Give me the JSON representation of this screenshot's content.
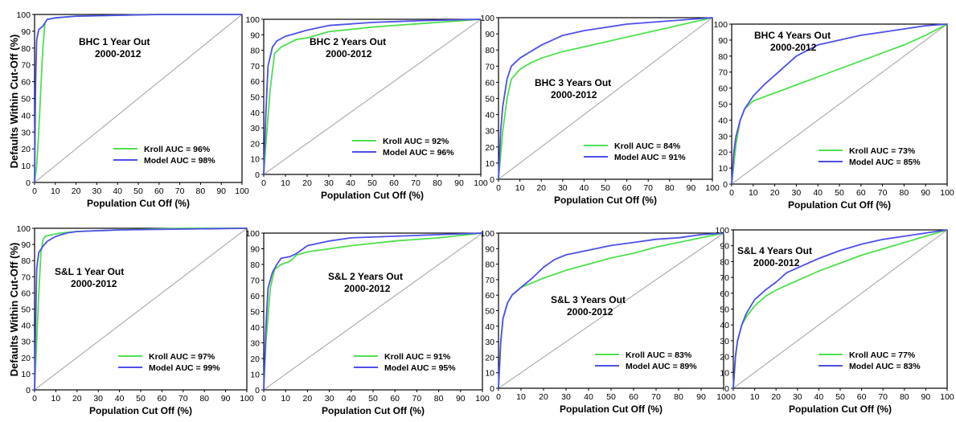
{
  "y_axis_label": "Defaults Within Cut-Off (%)",
  "x_axis_label": "Population Cut Off (%)",
  "tick_values": [
    0,
    10,
    20,
    30,
    40,
    50,
    60,
    70,
    80,
    90,
    100
  ],
  "colors": {
    "kroll": "#4ee04e",
    "model": "#4f4fe8",
    "diagonal": "#a0a0a0",
    "axis": "#000000"
  },
  "chart_data": [
    {
      "type": "line",
      "title_line1": "BHC 1 Year Out",
      "title_line2": "2000-2012",
      "xlabel": "Population Cut Off (%)",
      "ylabel": "Defaults Within Cut-Off (%)",
      "xlim": [
        0,
        100
      ],
      "ylim": [
        0,
        100
      ],
      "grid": false,
      "legend": "bottom-right",
      "series": [
        {
          "name": "Kroll AUC = 96%",
          "x": [
            0,
            1,
            2,
            3,
            4,
            5,
            6,
            10,
            20,
            40,
            60,
            100
          ],
          "y": [
            0,
            10,
            30,
            55,
            80,
            95,
            97,
            98,
            99,
            99.5,
            100,
            100
          ]
        },
        {
          "name": "Model AUC = 98%",
          "x": [
            0,
            0.5,
            1,
            2,
            4,
            6,
            10,
            20,
            60,
            100
          ],
          "y": [
            0,
            60,
            85,
            91,
            93,
            97,
            98,
            99,
            100,
            100
          ]
        }
      ]
    },
    {
      "type": "line",
      "title_line1": "BHC 2 Years Out",
      "title_line2": "2000-2012",
      "xlabel": "Population Cut Off (%)",
      "ylabel": "",
      "xlim": [
        0,
        100
      ],
      "ylim": [
        0,
        100
      ],
      "grid": false,
      "legend": "bottom-right",
      "series": [
        {
          "name": "Kroll AUC = 92%",
          "x": [
            0,
            1,
            3,
            5,
            8,
            15,
            20,
            30,
            50,
            70,
            100
          ],
          "y": [
            0,
            20,
            55,
            78,
            82,
            87,
            88,
            92,
            95,
            97,
            100
          ]
        },
        {
          "name": "Model AUC = 96%",
          "x": [
            0,
            1,
            2,
            4,
            6,
            10,
            15,
            20,
            30,
            50,
            70,
            100
          ],
          "y": [
            0,
            40,
            70,
            82,
            86,
            89,
            91,
            93,
            96,
            98,
            99,
            100
          ]
        }
      ]
    },
    {
      "type": "line",
      "title_line1": "BHC 3 Years Out",
      "title_line2": "2000-2012",
      "xlabel": "Population Cut Off (%)",
      "ylabel": "",
      "xlim": [
        0,
        100
      ],
      "ylim": [
        0,
        100
      ],
      "grid": false,
      "legend": "bottom-right",
      "series": [
        {
          "name": "Kroll AUC = 84%",
          "x": [
            0,
            2,
            4,
            6,
            10,
            15,
            20,
            30,
            40,
            50,
            60,
            70,
            80,
            90,
            100
          ],
          "y": [
            0,
            30,
            50,
            62,
            68,
            72,
            75,
            79,
            82,
            85,
            88,
            91,
            94,
            97,
            100
          ]
        },
        {
          "name": "Model AUC = 91%",
          "x": [
            0,
            1,
            2,
            4,
            6,
            10,
            15,
            20,
            30,
            40,
            50,
            60,
            70,
            80,
            90,
            100
          ],
          "y": [
            0,
            30,
            45,
            62,
            70,
            75,
            79,
            83,
            89,
            92,
            94,
            96,
            97,
            98,
            99,
            100
          ]
        }
      ]
    },
    {
      "type": "line",
      "title_line1": "BHC 4 Years Out",
      "title_line2": "2000-2012",
      "xlabel": "Population Cut Off (%)",
      "ylabel": "",
      "xlim": [
        0,
        100
      ],
      "ylim": [
        0,
        100
      ],
      "grid": false,
      "legend": "bottom-right",
      "series": [
        {
          "name": "Kroll AUC = 73%",
          "x": [
            0,
            2,
            4,
            6,
            10,
            20,
            30,
            40,
            50,
            60,
            70,
            80,
            90,
            100
          ],
          "y": [
            0,
            25,
            40,
            47,
            52,
            57,
            62,
            67,
            72,
            77,
            82,
            87,
            93,
            100
          ]
        },
        {
          "name": "Model AUC = 85%",
          "x": [
            0,
            1,
            2,
            4,
            6,
            10,
            15,
            20,
            30,
            40,
            50,
            60,
            70,
            80,
            90,
            100
          ],
          "y": [
            0,
            20,
            30,
            40,
            47,
            55,
            62,
            68,
            80,
            87,
            90,
            93,
            95,
            97,
            99,
            100
          ]
        }
      ]
    },
    {
      "type": "line",
      "title_line1": "S&L 1 Year Out",
      "title_line2": "2000-2012",
      "xlabel": "Population Cut Off (%)",
      "ylabel": "Defaults Within Cut-Off (%)",
      "xlim": [
        0,
        100
      ],
      "ylim": [
        0,
        100
      ],
      "grid": false,
      "legend": "bottom-right",
      "series": [
        {
          "name": "Kroll AUC = 97%",
          "x": [
            0,
            1,
            2,
            3,
            4,
            5,
            8,
            12,
            20,
            40,
            70,
            100
          ],
          "y": [
            0,
            30,
            60,
            85,
            93,
            95,
            96,
            97,
            98,
            99,
            100,
            100
          ]
        },
        {
          "name": "Model AUC = 99%",
          "x": [
            0,
            0.5,
            1,
            2,
            4,
            6,
            10,
            15,
            20,
            40,
            100
          ],
          "y": [
            0,
            40,
            75,
            85,
            89,
            92,
            95,
            97,
            98,
            99,
            100
          ]
        }
      ]
    },
    {
      "type": "line",
      "title_line1": "S&L 2 Years Out",
      "title_line2": "2000-2012",
      "xlabel": "Population Cut Off (%)",
      "ylabel": "",
      "xlim": [
        0,
        100
      ],
      "ylim": [
        0,
        100
      ],
      "grid": false,
      "legend": "bottom-right",
      "series": [
        {
          "name": "Kroll AUC = 91%",
          "x": [
            0,
            1,
            3,
            5,
            8,
            12,
            15,
            20,
            30,
            40,
            60,
            80,
            100
          ],
          "y": [
            0,
            30,
            65,
            77,
            80,
            82,
            86,
            88,
            90,
            92,
            95,
            97,
            100
          ]
        },
        {
          "name": "Model AUC = 95%",
          "x": [
            0,
            1,
            2,
            4,
            6,
            8,
            12,
            15,
            20,
            30,
            40,
            60,
            80,
            100
          ],
          "y": [
            0,
            40,
            65,
            75,
            80,
            84,
            85,
            87,
            92,
            95,
            97,
            98,
            99,
            100
          ]
        }
      ]
    },
    {
      "type": "line",
      "title_line1": "S&L 3 Years Out",
      "title_line2": "2000-2012",
      "xlabel": "Population Cut Off (%)",
      "ylabel": "",
      "xlim": [
        0,
        100
      ],
      "ylim": [
        0,
        100
      ],
      "grid": false,
      "legend": "bottom-right",
      "series": [
        {
          "name": "Kroll AUC = 83%",
          "x": [
            0,
            1,
            2,
            4,
            6,
            10,
            15,
            20,
            30,
            40,
            50,
            60,
            70,
            80,
            90,
            100
          ],
          "y": [
            0,
            30,
            45,
            55,
            60,
            65,
            68,
            71,
            76,
            80,
            84,
            87,
            91,
            94,
            97,
            100
          ]
        },
        {
          "name": "Model AUC = 89%",
          "x": [
            0,
            1,
            2,
            4,
            6,
            10,
            15,
            20,
            25,
            30,
            40,
            50,
            60,
            70,
            80,
            90,
            100
          ],
          "y": [
            0,
            30,
            45,
            55,
            60,
            65,
            71,
            78,
            83,
            86,
            89,
            92,
            94,
            96,
            97,
            99,
            100
          ]
        }
      ]
    },
    {
      "type": "line",
      "title_line1": "S&L 4 Years Out",
      "title_line2": "2000-2012",
      "xlabel": "Population Cut Off (%)",
      "ylabel": "",
      "xlim": [
        0,
        100
      ],
      "ylim": [
        0,
        100
      ],
      "grid": false,
      "legend": "bottom-right",
      "series": [
        {
          "name": "Kroll AUC = 77%",
          "x": [
            0,
            1,
            2,
            4,
            6,
            10,
            15,
            20,
            30,
            40,
            50,
            60,
            70,
            80,
            90,
            100
          ],
          "y": [
            0,
            20,
            30,
            40,
            45,
            52,
            58,
            62,
            68,
            74,
            79,
            84,
            88,
            92,
            96,
            100
          ]
        },
        {
          "name": "Model AUC = 83%",
          "x": [
            0,
            1,
            2,
            4,
            6,
            10,
            15,
            20,
            25,
            30,
            40,
            50,
            60,
            70,
            80,
            90,
            100
          ],
          "y": [
            0,
            20,
            30,
            40,
            47,
            56,
            62,
            67,
            73,
            76,
            82,
            87,
            91,
            94,
            96,
            98,
            100
          ]
        }
      ]
    }
  ]
}
